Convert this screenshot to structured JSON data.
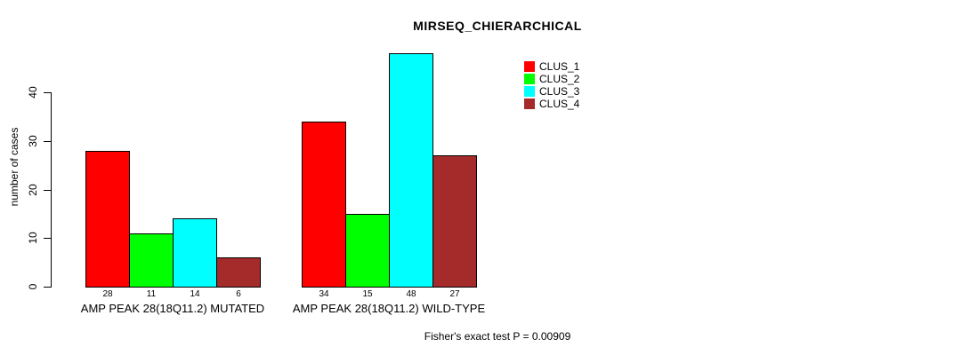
{
  "chart_data": {
    "type": "bar",
    "title": "MIRSEQ_CHIERARCHICAL",
    "ylabel": "number of cases",
    "xlabel": "",
    "ylim": [
      0,
      48
    ],
    "yticks": [
      0,
      10,
      20,
      30,
      40
    ],
    "grid": false,
    "legend_position": "top-right",
    "categories": [
      "AMP PEAK 28(18Q11.2) MUTATED",
      "AMP PEAK 28(18Q11.2) WILD-TYPE"
    ],
    "series": [
      {
        "name": "CLUS_1",
        "color": "#FF0000",
        "values": [
          28,
          34
        ]
      },
      {
        "name": "CLUS_2",
        "color": "#00FF00",
        "values": [
          11,
          15
        ]
      },
      {
        "name": "CLUS_3",
        "color": "#00FFFF",
        "values": [
          14,
          48
        ]
      },
      {
        "name": "CLUS_4",
        "color": "#A52A2A",
        "values": [
          6,
          27
        ]
      }
    ],
    "bar_value_labels": [
      [
        28,
        11,
        14,
        6
      ],
      [
        34,
        15,
        48,
        27
      ]
    ],
    "annotation": "Fisher's exact test P = 0.00909"
  },
  "colors": {
    "bar_border": "#000000",
    "axis": "#000000",
    "text": "#000000",
    "background": "#FFFFFF"
  }
}
